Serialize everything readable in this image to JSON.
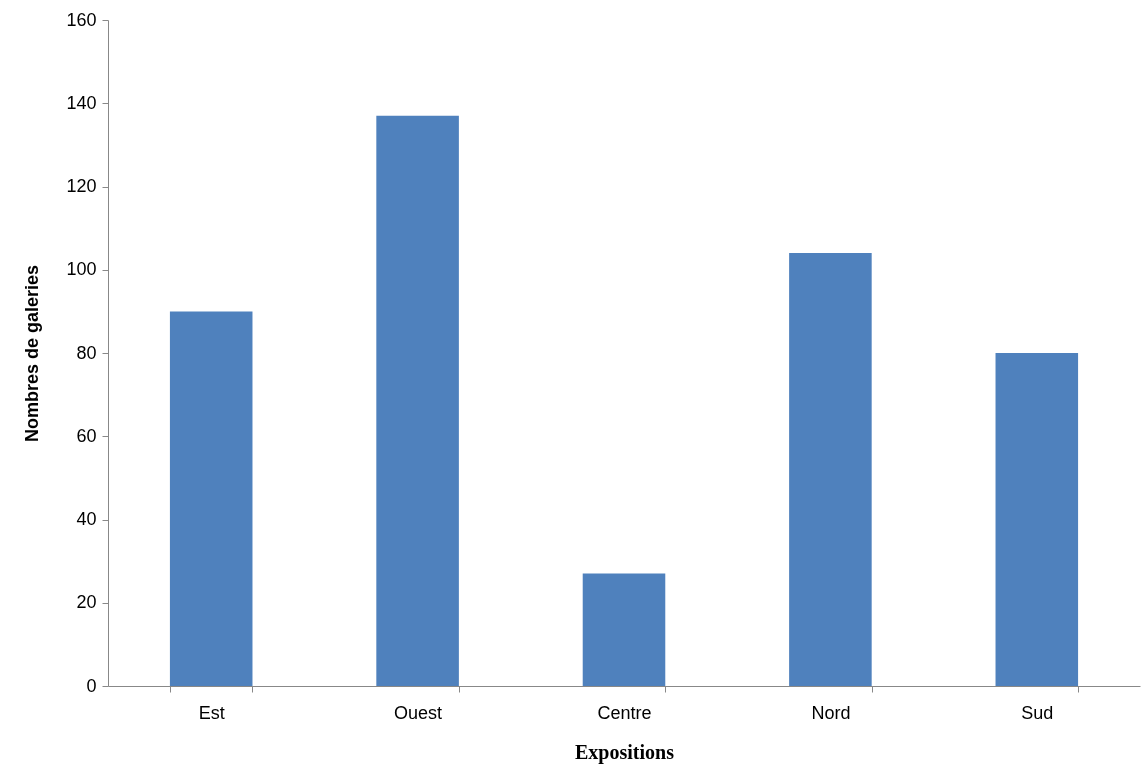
{
  "chart_data": {
    "type": "bar",
    "xlabel": "Expositions",
    "ylabel": "Nombres de galeries",
    "categories": [
      "Est",
      "Ouest",
      "Centre",
      "Nord",
      "Sud"
    ],
    "values": [
      90,
      137,
      27,
      104,
      80
    ],
    "color": "#4f81bd",
    "ylim": [
      0,
      160
    ],
    "yticks": [
      0,
      20,
      40,
      60,
      80,
      100,
      120,
      140,
      160
    ],
    "grid": false,
    "legend": false
  }
}
